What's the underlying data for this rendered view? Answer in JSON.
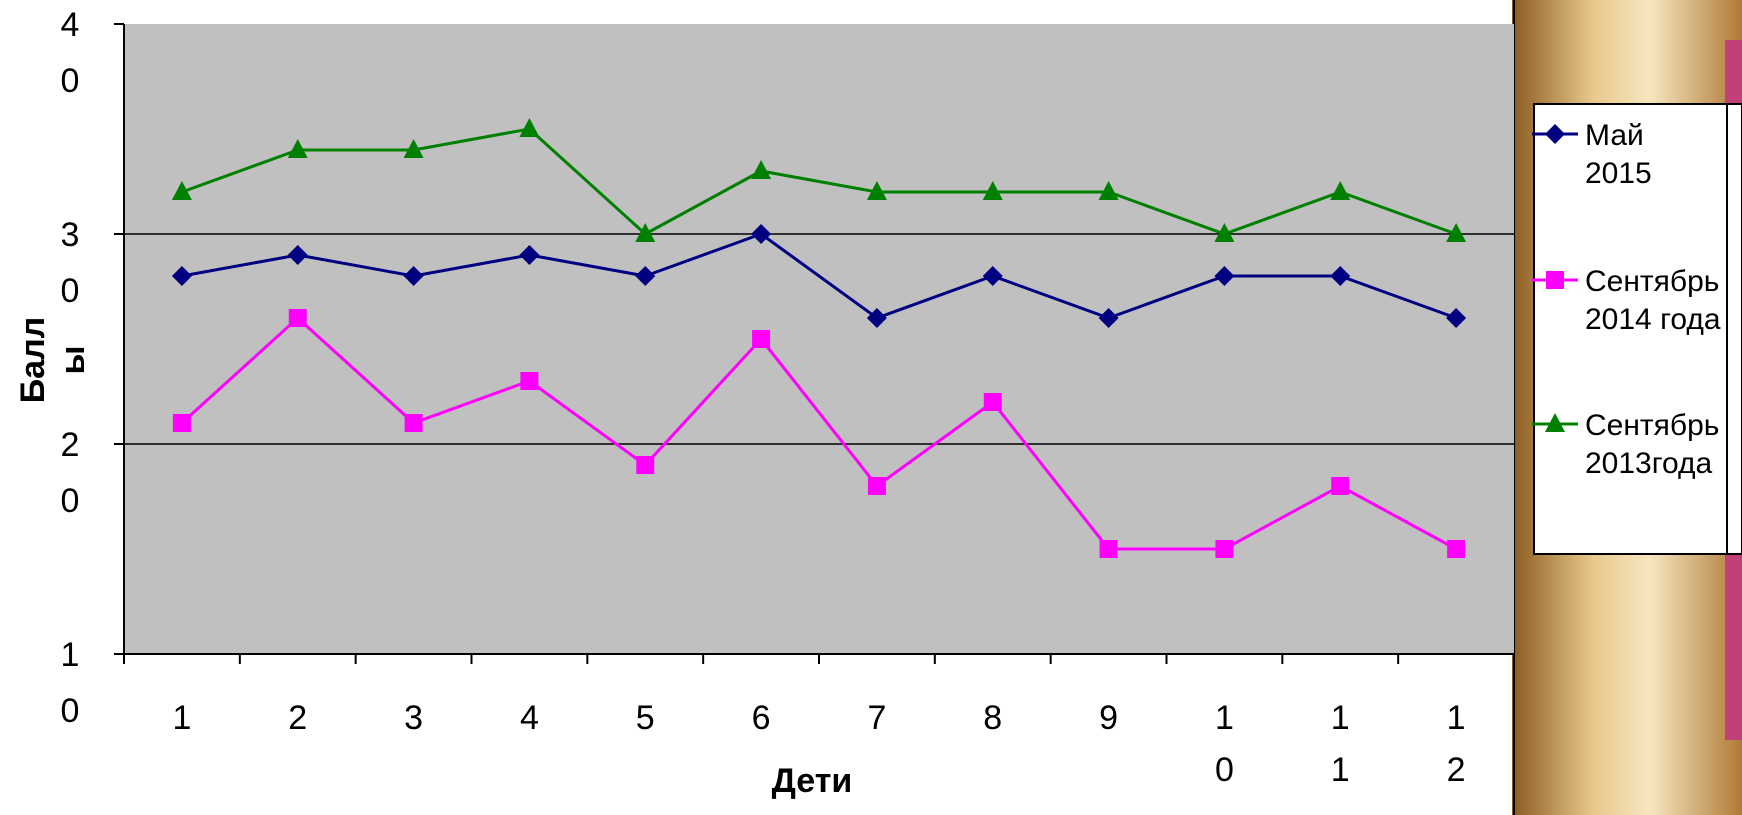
{
  "chart_data": {
    "type": "line",
    "xlabel": "Дети",
    "ylabel": "Баллы",
    "ylim": [
      10,
      40
    ],
    "yticks": [
      10,
      20,
      30,
      40
    ],
    "categories": [
      "1",
      "2",
      "3",
      "4",
      "5",
      "6",
      "7",
      "8",
      "9",
      "10",
      "11",
      "12"
    ],
    "grid": true,
    "legend_position": "right",
    "colors": {
      "plot_background": "#c0c0c0",
      "decoration_gold": "#c9974a",
      "decoration_pink": "#c2407a"
    },
    "series": [
      {
        "name": "Май 2015",
        "name_lines": [
          "Май",
          "2015"
        ],
        "color": "#000080",
        "marker": "diamond",
        "values": [
          28,
          29,
          28,
          29,
          28,
          30,
          26,
          28,
          26,
          28,
          28,
          26
        ]
      },
      {
        "name": "Сентябрь 2014 года",
        "name_lines": [
          "Сентябрь",
          "2014 года"
        ],
        "color": "#ff00ff",
        "marker": "square",
        "values": [
          21,
          26,
          21,
          23,
          19,
          25,
          18,
          22,
          15,
          15,
          18,
          15
        ]
      },
      {
        "name": "Сентябрь 2013года",
        "name_lines": [
          "Сентябрь",
          "2013года"
        ],
        "color": "#008000",
        "marker": "triangle",
        "values": [
          32,
          34,
          34,
          35,
          30,
          33,
          32,
          32,
          32,
          30,
          32,
          30
        ]
      }
    ]
  }
}
